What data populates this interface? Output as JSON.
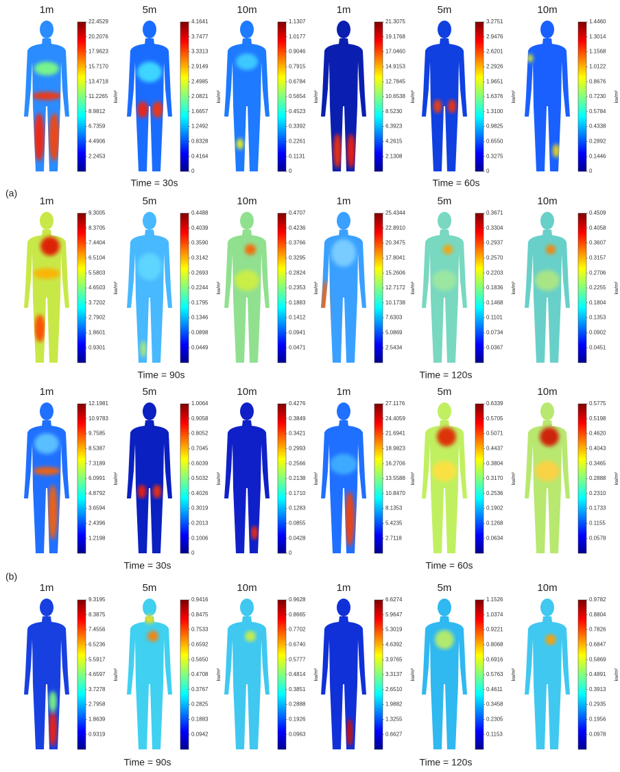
{
  "figure": {
    "unit": "kw/m²",
    "group_labels": [
      "(a)",
      "(b)"
    ],
    "rows": [
      {
        "time_labels": [
          "Time = 30s",
          "Time = 60s"
        ],
        "panels": [
          {
            "label": "1m",
            "colorbar_ticks": [
              "22.4529",
              "20.2076",
              "17.9623",
              "15.7170",
              "13.4718",
              "11.2265",
              "8.9812",
              "6.7359",
              "4.4906",
              "2.2453"
            ]
          },
          {
            "label": "5m",
            "colorbar_ticks": [
              "4.1641",
              "3.7477",
              "3.3313",
              "2.9149",
              "2.4985",
              "2.0821",
              "1.6657",
              "1.2492",
              "0.8328",
              "0.4164",
              "0"
            ]
          },
          {
            "label": "10m",
            "colorbar_ticks": [
              "1.1307",
              "1.0177",
              "0.9046",
              "0.7915",
              "0.6784",
              "0.5654",
              "0.4523",
              "0.3392",
              "0.2261",
              "0.1131",
              "0"
            ]
          },
          {
            "label": "1m",
            "colorbar_ticks": [
              "21.3075",
              "19.1768",
              "17.0460",
              "14.9153",
              "12.7845",
              "10.6538",
              "8.5230",
              "6.3923",
              "4.2615",
              "2.1308"
            ]
          },
          {
            "label": "5m",
            "colorbar_ticks": [
              "3.2751",
              "2.9476",
              "2.6201",
              "2.2926",
              "1.9651",
              "1.6376",
              "1.3100",
              "0.9825",
              "0.6550",
              "0.3275",
              "0"
            ]
          },
          {
            "label": "10m",
            "colorbar_ticks": [
              "1.4460",
              "1.3014",
              "1.1568",
              "1.0122",
              "0.8676",
              "0.7230",
              "0.5784",
              "0.4338",
              "0.2892",
              "0.1446",
              "0"
            ]
          }
        ]
      },
      {
        "time_labels": [
          "Time = 90s",
          "Time = 120s"
        ],
        "panels": [
          {
            "label": "1m",
            "colorbar_ticks": [
              "9.3005",
              "8.3705",
              "7.4404",
              "6.5104",
              "5.5803",
              "4.6503",
              "3.7202",
              "2.7902",
              "1.8601",
              "0.9301"
            ]
          },
          {
            "label": "5m",
            "colorbar_ticks": [
              "0.4488",
              "0.4039",
              "0.3590",
              "0.3142",
              "0.2693",
              "0.2244",
              "0.1795",
              "0.1346",
              "0.0898",
              "0.0449"
            ]
          },
          {
            "label": "10m",
            "colorbar_ticks": [
              "0.4707",
              "0.4236",
              "0.3766",
              "0.3295",
              "0.2824",
              "0.2353",
              "0.1883",
              "0.1412",
              "0.0941",
              "0.0471"
            ]
          },
          {
            "label": "1m",
            "colorbar_ticks": [
              "25.4344",
              "22.8910",
              "20.3475",
              "17.8041",
              "15.2606",
              "12.7172",
              "10.1738",
              "7.6303",
              "5.0869",
              "2.5434"
            ]
          },
          {
            "label": "5m",
            "colorbar_ticks": [
              "0.3671",
              "0.3304",
              "0.2937",
              "0.2570",
              "0.2203",
              "0.1836",
              "0.1468",
              "0.1101",
              "0.0734",
              "0.0367"
            ]
          },
          {
            "label": "10m",
            "colorbar_ticks": [
              "0.4509",
              "0.4058",
              "0.3607",
              "0.3157",
              "0.2706",
              "0.2255",
              "0.1804",
              "0.1353",
              "0.0902",
              "0.0451"
            ]
          }
        ]
      },
      {
        "time_labels": [
          "Time = 30s",
          "Time = 60s"
        ],
        "panels": [
          {
            "label": "1m",
            "colorbar_ticks": [
              "12.1981",
              "10.9783",
              "9.7585",
              "8.5387",
              "7.3189",
              "6.0991",
              "4.8792",
              "3.6594",
              "2.4396",
              "1.2198"
            ]
          },
          {
            "label": "5m",
            "colorbar_ticks": [
              "1.0064",
              "0.9058",
              "0.8052",
              "0.7045",
              "0.6039",
              "0.5032",
              "0.4026",
              "0.3019",
              "0.2013",
              "0.1006",
              "0"
            ]
          },
          {
            "label": "10m",
            "colorbar_ticks": [
              "0.4276",
              "0.3849",
              "0.3421",
              "0.2993",
              "0.2566",
              "0.2138",
              "0.1710",
              "0.1283",
              "0.0855",
              "0.0428",
              "0"
            ]
          },
          {
            "label": "1m",
            "colorbar_ticks": [
              "27.1176",
              "24.4059",
              "21.6941",
              "18.9823",
              "16.2706",
              "13.5588",
              "10.8470",
              "8.1353",
              "5.4235",
              "2.7118"
            ]
          },
          {
            "label": "5m",
            "colorbar_ticks": [
              "0.6339",
              "0.5705",
              "0.5071",
              "0.4437",
              "0.3804",
              "0.3170",
              "0.2536",
              "0.1902",
              "0.1268",
              "0.0634"
            ]
          },
          {
            "label": "10m",
            "colorbar_ticks": [
              "0.5775",
              "0.5198",
              "0.4620",
              "0.4043",
              "0.3465",
              "0.2888",
              "0.2310",
              "0.1733",
              "0.1155",
              "0.0578"
            ]
          }
        ]
      },
      {
        "time_labels": [
          "Time = 90s",
          "Time = 120s"
        ],
        "panels": [
          {
            "label": "1m",
            "colorbar_ticks": [
              "9.3195",
              "8.3875",
              "7.4556",
              "6.5236",
              "5.5917",
              "4.6597",
              "3.7278",
              "2.7958",
              "1.8639",
              "0.9319"
            ]
          },
          {
            "label": "5m",
            "colorbar_ticks": [
              "0.9416",
              "0.8475",
              "0.7533",
              "0.6592",
              "0.5650",
              "0.4708",
              "0.3767",
              "0.2825",
              "0.1883",
              "0.0942"
            ]
          },
          {
            "label": "10m",
            "colorbar_ticks": [
              "0.9628",
              "0.8665",
              "0.7702",
              "0.6740",
              "0.5777",
              "0.4814",
              "0.3851",
              "0.2888",
              "0.1926",
              "0.0963"
            ]
          },
          {
            "label": "1m",
            "colorbar_ticks": [
              "6.6274",
              "5.9647",
              "5.3019",
              "4.6392",
              "3.9765",
              "3.3137",
              "2.6510",
              "1.9882",
              "1.3255",
              "0.6627"
            ]
          },
          {
            "label": "5m",
            "colorbar_ticks": [
              "1.1526",
              "1.0374",
              "0.9221",
              "0.8068",
              "0.6916",
              "0.5763",
              "0.4611",
              "0.3458",
              "0.2305",
              "0.1153"
            ]
          },
          {
            "label": "10m",
            "colorbar_ticks": [
              "0.9782",
              "0.8804",
              "0.7826",
              "0.6847",
              "0.5869",
              "0.4891",
              "0.3913",
              "0.2935",
              "0.1956",
              "0.0978"
            ]
          }
        ]
      }
    ]
  }
}
